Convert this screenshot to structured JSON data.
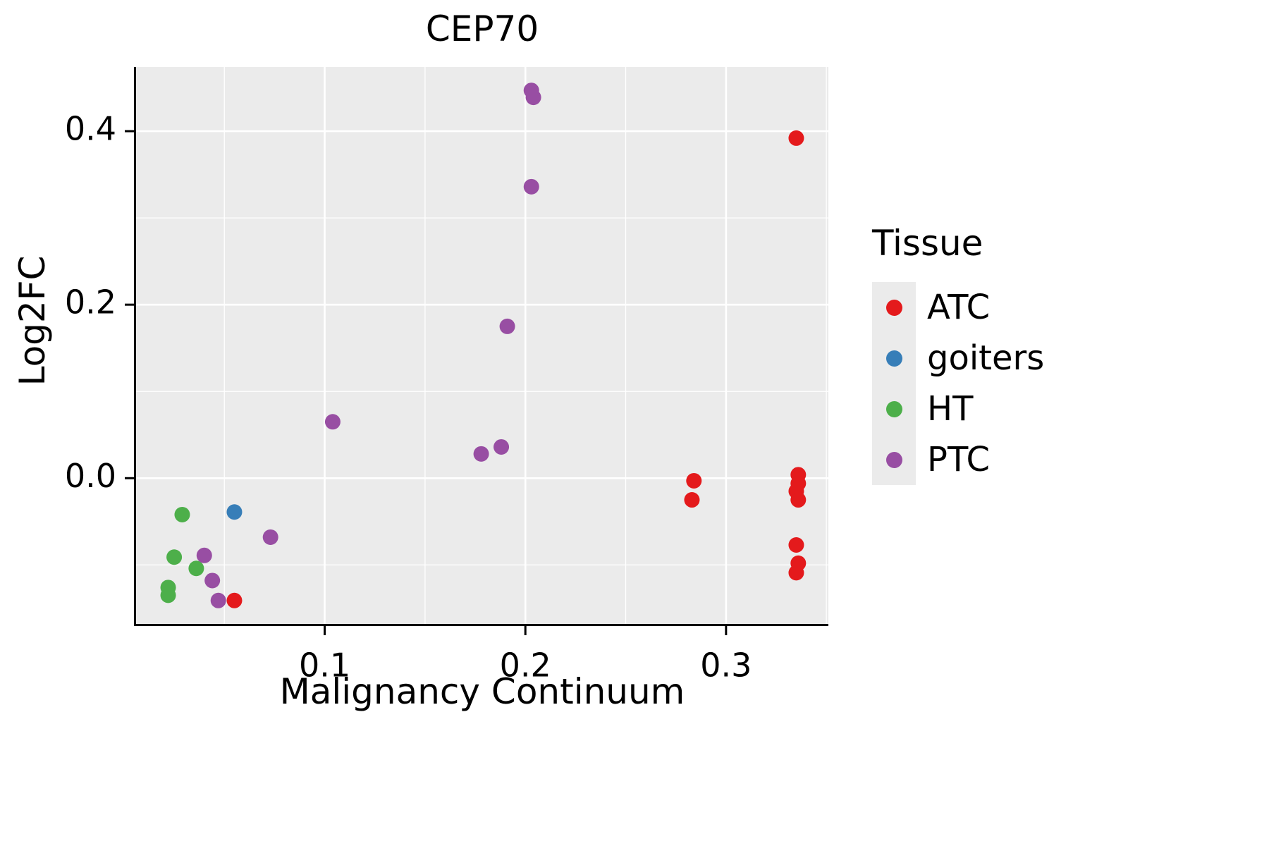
{
  "title": "CEP70",
  "axes": {
    "x_label": "Malignancy Continuum",
    "y_label": "Log2FC"
  },
  "legend": {
    "title": "Tissue",
    "entries": [
      {
        "label": "ATC",
        "color": "#e41a1c"
      },
      {
        "label": "goiters",
        "color": "#377eb8"
      },
      {
        "label": "HT",
        "color": "#4daf4a"
      },
      {
        "label": "PTC",
        "color": "#984ea3"
      }
    ]
  },
  "chart_data": {
    "type": "scatter",
    "title": "CEP70",
    "xlabel": "Malignancy Continuum",
    "ylabel": "Log2FC",
    "xlim": [
      0.006,
      0.351
    ],
    "ylim": [
      -0.168,
      0.474
    ],
    "x_ticks": [
      0.1,
      0.2,
      0.3
    ],
    "y_ticks": [
      0.0,
      0.2,
      0.4
    ],
    "x_minor_ticks": [
      0.05,
      0.15,
      0.25,
      0.35
    ],
    "y_minor_ticks": [
      -0.1,
      0.1,
      0.3
    ],
    "grid": "on",
    "legend_position": "right",
    "panel_background": "#ebebeb",
    "grid_color": "#ffffff",
    "point_radius": 11,
    "series": [
      {
        "name": "ATC",
        "color": "#e41a1c",
        "points": [
          [
            0.055,
            -0.141
          ],
          [
            0.284,
            -0.003
          ],
          [
            0.283,
            -0.025
          ],
          [
            0.335,
            0.392
          ],
          [
            0.336,
            0.004
          ],
          [
            0.336,
            -0.006
          ],
          [
            0.335,
            -0.015
          ],
          [
            0.336,
            -0.025
          ],
          [
            0.335,
            -0.077
          ],
          [
            0.336,
            -0.098
          ],
          [
            0.335,
            -0.109
          ]
        ]
      },
      {
        "name": "goiters",
        "color": "#377eb8",
        "points": [
          [
            0.055,
            -0.039
          ]
        ]
      },
      {
        "name": "HT",
        "color": "#4daf4a",
        "points": [
          [
            0.029,
            -0.042
          ],
          [
            0.025,
            -0.091
          ],
          [
            0.036,
            -0.104
          ],
          [
            0.022,
            -0.126
          ],
          [
            0.022,
            -0.135
          ]
        ]
      },
      {
        "name": "PTC",
        "color": "#984ea3",
        "points": [
          [
            0.203,
            0.447
          ],
          [
            0.204,
            0.439
          ],
          [
            0.203,
            0.336
          ],
          [
            0.191,
            0.175
          ],
          [
            0.104,
            0.065
          ],
          [
            0.188,
            0.036
          ],
          [
            0.178,
            0.028
          ],
          [
            0.073,
            -0.068
          ],
          [
            0.04,
            -0.089
          ],
          [
            0.044,
            -0.118
          ],
          [
            0.047,
            -0.141
          ]
        ]
      }
    ]
  }
}
